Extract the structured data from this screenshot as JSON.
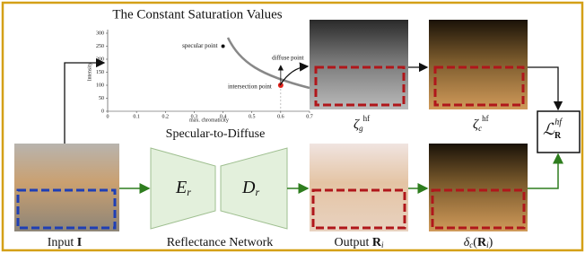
{
  "plot": {
    "title": "The Constant Saturation Values",
    "xlabel": "max. chromaticity",
    "ylabel": "Intensity",
    "xlim": [
      0,
      0.7
    ],
    "ylim": [
      0,
      300
    ],
    "xticks": [
      0,
      0.1,
      0.2,
      0.3,
      0.4,
      0.5,
      0.6,
      0.7
    ],
    "yticks": [
      0,
      50,
      100,
      150,
      200,
      250,
      300
    ],
    "specular": {
      "label": "specular point",
      "x": 0.4,
      "y": 250
    },
    "intersection": {
      "label": "intersection point",
      "x": 0.6,
      "y": 100
    },
    "diffuse": {
      "label": "diffuse point"
    },
    "caption": "Specular-to-Diffuse"
  },
  "labels": {
    "zeta_g": {
      "base": "ζ",
      "sub": "g",
      "sup": "hf"
    },
    "zeta_c": {
      "base": "ζ",
      "sub": "c",
      "sup": "hf"
    },
    "loss": {
      "base": "ℒ",
      "sub": "R",
      "sup": "hf"
    },
    "encoder": {
      "base": "E",
      "sub": "r"
    },
    "decoder": {
      "base": "D",
      "sub": "r"
    },
    "input": {
      "text": "Input",
      "sym": "I"
    },
    "network": "Reflectance Network",
    "output": {
      "text": "Output",
      "sym": "R",
      "sub": "i"
    },
    "delta": {
      "pre": "δ",
      "sub": "c",
      "open": "(",
      "sym": "R",
      "sub2": "i",
      "close": ")"
    }
  }
}
